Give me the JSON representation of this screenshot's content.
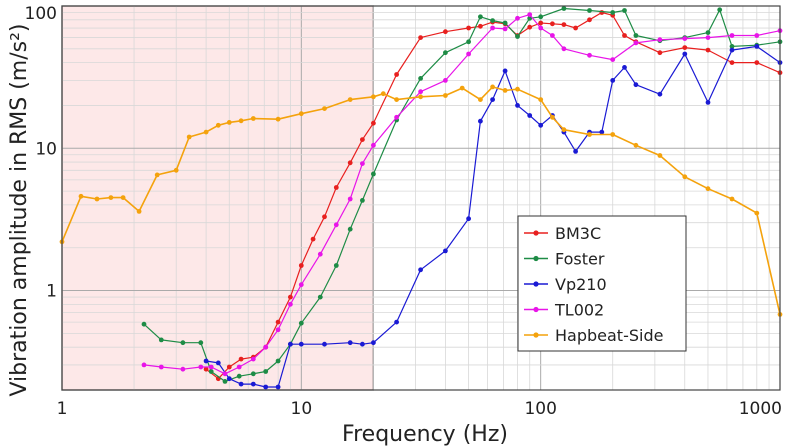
{
  "chart_data": {
    "type": "line",
    "xlabel": "Frequency (Hz)",
    "ylabel": "Vibration amplitude in RMS (m/s²)",
    "xscale": "log",
    "yscale": "log",
    "xlim": [
      1,
      1000
    ],
    "ylim": [
      0.2,
      100
    ],
    "grid": true,
    "legend_position": "lower-right",
    "shaded_region": {
      "x_range": [
        1,
        20
      ],
      "color": "#fde8e8"
    },
    "x_ticks": [
      {
        "value": 1,
        "label": "1"
      },
      {
        "value": 10,
        "label": "10"
      },
      {
        "value": 100,
        "label": "100"
      },
      {
        "value": 1000,
        "label": "1000"
      }
    ],
    "y_ticks": [
      {
        "value": 1,
        "label": "1"
      },
      {
        "value": 10,
        "label": "10"
      },
      {
        "value": 100,
        "label": "100"
      }
    ],
    "series": [
      {
        "name": "BM3C",
        "color": "#e8201f",
        "x": [
          4,
          4.5,
          5,
          5.6,
          6.3,
          7.1,
          8,
          9,
          10,
          11.2,
          12.5,
          14,
          16,
          18,
          20,
          25,
          31.5,
          40,
          50,
          56,
          63,
          71,
          80,
          90,
          100,
          112,
          125,
          140,
          160,
          180,
          200,
          224,
          250,
          315,
          400,
          500,
          630,
          800,
          1000
        ],
        "y": [
          0.28,
          0.24,
          0.29,
          0.33,
          0.34,
          0.4,
          0.6,
          0.9,
          1.5,
          2.3,
          3.3,
          5.3,
          7.9,
          11.5,
          15,
          33,
          60,
          66,
          70,
          72,
          77,
          75,
          62,
          71,
          76,
          75,
          74,
          70,
          80,
          90,
          86,
          62,
          56,
          47,
          51,
          49,
          40,
          40,
          34
        ],
        "x_shift": 1
      },
      {
        "name": "Foster",
        "color": "#1e8c46",
        "x": [
          2.2,
          2.6,
          3.2,
          3.8,
          4.2,
          4.8,
          5.5,
          6.3,
          7.1,
          8,
          9,
          10,
          12,
          14,
          16,
          18,
          20,
          25,
          31.5,
          40,
          50,
          56,
          63,
          71,
          80,
          90,
          100,
          125,
          160,
          200,
          224,
          250,
          315,
          400,
          500,
          560,
          630,
          800,
          1000
        ],
        "y": [
          0.58,
          0.45,
          0.43,
          0.43,
          0.27,
          0.23,
          0.25,
          0.26,
          0.27,
          0.32,
          0.42,
          0.59,
          0.9,
          1.5,
          2.7,
          4.3,
          6.6,
          15.8,
          31,
          47,
          56,
          84,
          79,
          76,
          61,
          82,
          84,
          96,
          93,
          90,
          93,
          62,
          57,
          60,
          65,
          94,
          52,
          53,
          56
        ],
        "x_shift": 1
      },
      {
        "name": "Vp210",
        "color": "#1a1ad4",
        "x": [
          4,
          4.5,
          5,
          5.6,
          6.3,
          7.1,
          8,
          9,
          10,
          12.5,
          16,
          18,
          20,
          25,
          31.5,
          40,
          50,
          56,
          63,
          71,
          80,
          90,
          100,
          112,
          125,
          140,
          160,
          180,
          200,
          224,
          250,
          315,
          400,
          500,
          630,
          800,
          1000
        ],
        "y": [
          0.32,
          0.31,
          0.24,
          0.22,
          0.22,
          0.21,
          0.21,
          0.42,
          0.42,
          0.42,
          0.43,
          0.42,
          0.43,
          0.6,
          1.4,
          1.9,
          3.2,
          15.5,
          22,
          35,
          20,
          17,
          14.5,
          17,
          13,
          9.5,
          13,
          13,
          30,
          37,
          28,
          24,
          46,
          21,
          49,
          52,
          40
        ],
        "x_shift": 1
      },
      {
        "name": "TL002",
        "color": "#e815e8",
        "x": [
          2.2,
          2.6,
          3.2,
          3.8,
          4.2,
          4.8,
          5.5,
          6.3,
          7.1,
          8,
          9,
          10,
          12,
          14,
          16,
          18,
          20,
          25,
          31.5,
          40,
          50,
          63,
          71,
          80,
          90,
          100,
          112,
          125,
          160,
          200,
          250,
          315,
          400,
          500,
          630,
          800,
          1000
        ],
        "y": [
          0.3,
          0.29,
          0.28,
          0.29,
          0.29,
          0.26,
          0.29,
          0.33,
          0.4,
          0.53,
          0.8,
          1.1,
          1.8,
          2.9,
          4.4,
          7.8,
          10.5,
          16.5,
          25,
          30,
          46,
          70,
          69,
          82,
          87,
          70,
          62,
          50,
          45,
          42,
          55,
          58,
          59,
          60,
          62,
          62,
          67
        ],
        "x_shift": 1
      },
      {
        "name": "Hapbeat-Side",
        "color": "#f4a20c",
        "x": [
          1,
          1.2,
          1.4,
          1.6,
          1.8,
          2.1,
          2.5,
          3,
          3.4,
          4,
          4.5,
          5,
          5.6,
          6.3,
          8,
          10,
          12.5,
          16,
          20,
          22,
          25,
          31.5,
          40,
          47,
          56,
          63,
          71,
          80,
          100,
          112,
          125,
          160,
          200,
          250,
          315,
          400,
          500,
          630,
          800,
          1000
        ],
        "y": [
          2.2,
          4.6,
          4.4,
          4.5,
          4.5,
          3.6,
          6.5,
          7.0,
          12.0,
          13.0,
          14.5,
          15.2,
          15.6,
          16.2,
          16.0,
          17.5,
          19,
          22,
          23,
          24.2,
          22,
          23,
          23.5,
          26.5,
          22,
          27,
          25.5,
          26,
          22,
          16.5,
          13.5,
          12.5,
          12.5,
          10.5,
          8.9,
          6.3,
          5.2,
          4.4,
          3.5,
          0.68
        ],
        "x_shift": 0
      }
    ]
  }
}
